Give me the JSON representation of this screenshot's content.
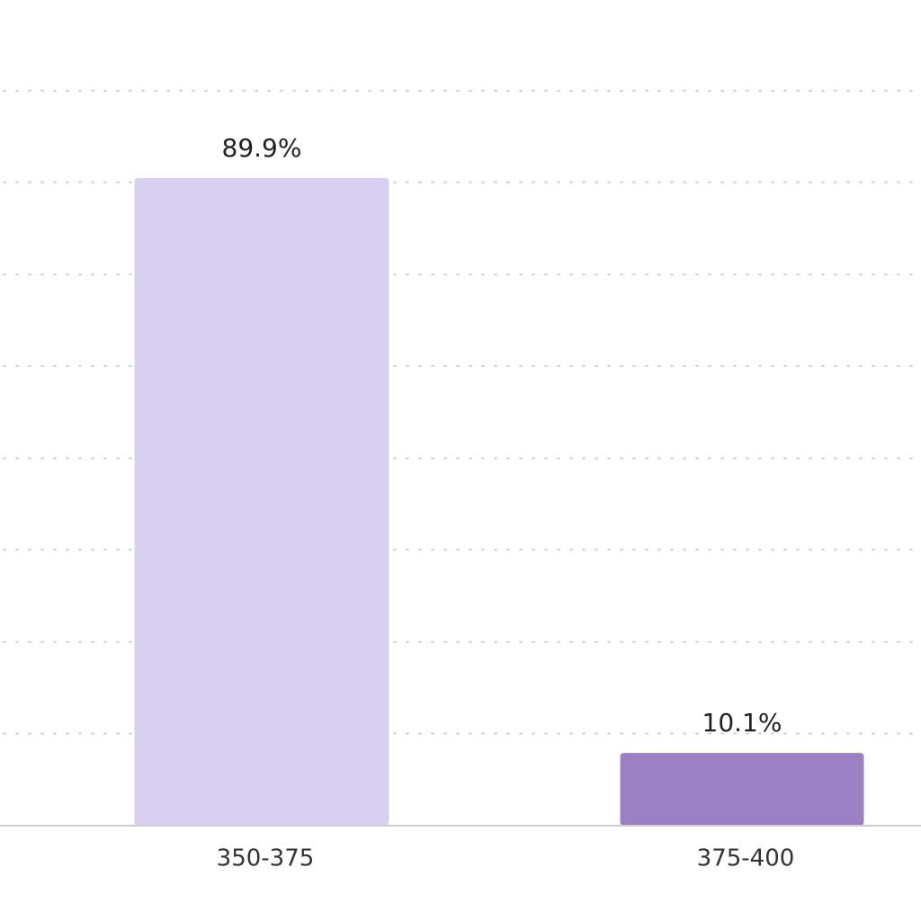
{
  "chart_data": {
    "type": "bar",
    "categories": [
      "350-375",
      "375-400"
    ],
    "values": [
      89.9,
      10.1
    ],
    "value_labels": [
      "89.9%",
      "10.1%"
    ],
    "colors": [
      "#d8cff1",
      "#9b80c4"
    ],
    "ylim": [
      0,
      114.6
    ],
    "yticks": [
      12.8,
      25.5,
      38.3,
      51,
      63.8,
      76.5,
      89.3,
      102
    ],
    "grid": true
  }
}
